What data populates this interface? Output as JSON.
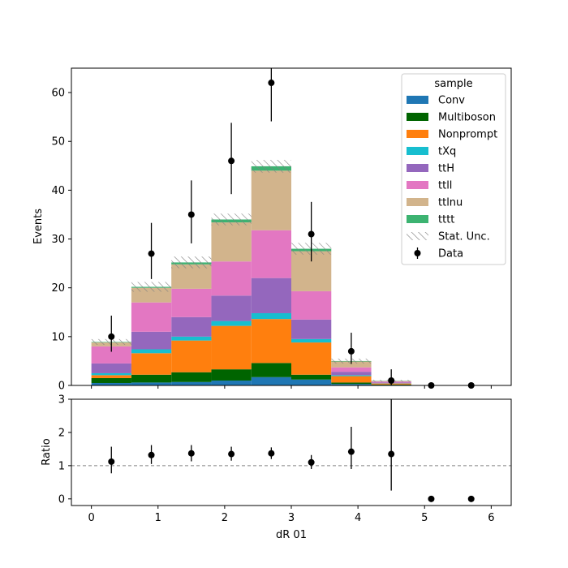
{
  "chart_data": [
    {
      "type": "bar",
      "stacked": true,
      "xlabel": "",
      "ylabel": "Events",
      "xlim": [
        -0.3,
        6.3
      ],
      "ylim": [
        0,
        65
      ],
      "yticks": [
        0,
        10,
        20,
        30,
        40,
        50,
        60
      ],
      "xticks": [
        0,
        1,
        2,
        3,
        4,
        5,
        6
      ],
      "bin_edges": [
        0.0,
        0.6,
        1.2,
        1.8,
        2.4,
        3.0,
        3.6,
        4.2,
        4.8,
        5.4,
        6.0
      ],
      "legend": {
        "title": "sample",
        "placement": "top-right"
      },
      "series": [
        {
          "name": "Conv",
          "color": "#1f77b4",
          "values": [
            0.5,
            0.6,
            0.7,
            1.0,
            1.7,
            1.2,
            0.3,
            0.1,
            0.0,
            0.0
          ]
        },
        {
          "name": "Multiboson",
          "color": "#006400",
          "values": [
            1.0,
            1.6,
            2.0,
            2.3,
            2.9,
            1.0,
            0.3,
            0.1,
            0.0,
            0.0
          ]
        },
        {
          "name": "Nonprompt",
          "color": "#ff7f0e",
          "values": [
            0.6,
            4.4,
            6.5,
            8.9,
            9.0,
            6.6,
            1.3,
            0.2,
            0.0,
            0.0
          ]
        },
        {
          "name": "tXq",
          "color": "#17becf",
          "values": [
            0.4,
            0.8,
            0.8,
            1.0,
            1.2,
            0.7,
            0.2,
            0.05,
            0.0,
            0.0
          ]
        },
        {
          "name": "ttH",
          "color": "#9467bd",
          "values": [
            2.0,
            3.6,
            4.0,
            5.2,
            7.2,
            4.0,
            0.7,
            0.15,
            0.0,
            0.0
          ]
        },
        {
          "name": "ttll",
          "color": "#e377c2",
          "values": [
            3.5,
            6.0,
            5.8,
            7.0,
            9.8,
            5.8,
            0.9,
            0.2,
            0.0,
            0.0
          ]
        },
        {
          "name": "ttlnu",
          "color": "#d2b48c",
          "values": [
            0.8,
            3.0,
            5.0,
            8.0,
            12.2,
            8.2,
            1.2,
            0.1,
            0.0,
            0.0
          ]
        },
        {
          "name": "tttt",
          "color": "#3cb371",
          "values": [
            0.1,
            0.2,
            0.4,
            0.6,
            0.9,
            0.5,
            0.1,
            0.05,
            0.0,
            0.0
          ]
        }
      ],
      "stat_unc": {
        "name": "Stat. Unc.",
        "values": [
          0.6,
          1.0,
          1.2,
          1.2,
          1.3,
          1.2,
          0.5,
          0.2,
          0.0,
          0.0
        ]
      },
      "data": {
        "name": "Data",
        "x": [
          0.3,
          0.9,
          1.5,
          2.1,
          2.7,
          3.3,
          3.9,
          4.5,
          5.1,
          5.7
        ],
        "y": [
          10,
          27,
          35,
          46,
          62,
          31,
          7,
          1,
          0,
          0
        ],
        "yerr_low": [
          3.1,
          5.2,
          5.9,
          6.8,
          7.9,
          5.6,
          2.6,
          1.0,
          0,
          0
        ],
        "yerr_high": [
          4.3,
          6.3,
          7.0,
          7.8,
          8.9,
          6.6,
          3.8,
          2.3,
          0,
          0
        ]
      }
    },
    {
      "type": "scatter",
      "xlabel": "dR 01",
      "ylabel": "Ratio",
      "xlim": [
        -0.3,
        6.3
      ],
      "ylim": [
        -0.2,
        3
      ],
      "yticks": [
        0,
        1,
        2,
        3
      ],
      "xticks": [
        0,
        1,
        2,
        3,
        4,
        5,
        6
      ],
      "reference_line": 1,
      "x": [
        0.3,
        0.9,
        1.5,
        2.1,
        2.7,
        3.3,
        3.9,
        4.5,
        5.1,
        5.7
      ],
      "y": [
        1.12,
        1.32,
        1.37,
        1.35,
        1.37,
        1.1,
        1.42,
        1.35,
        0.0,
        0.0
      ],
      "yerr_low": [
        0.35,
        0.27,
        0.24,
        0.2,
        0.17,
        0.2,
        0.52,
        1.1,
        0,
        0
      ],
      "yerr_high": [
        0.45,
        0.3,
        0.25,
        0.22,
        0.18,
        0.22,
        0.75,
        1.8,
        0,
        0
      ]
    }
  ]
}
